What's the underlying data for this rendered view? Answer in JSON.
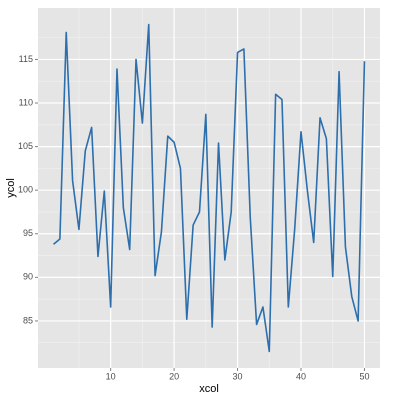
{
  "chart_data": {
    "type": "line",
    "x_label": "xcol",
    "y_label": "ycol",
    "x": [
      1,
      2,
      3,
      4,
      5,
      6,
      7,
      8,
      9,
      10,
      11,
      12,
      13,
      14,
      15,
      16,
      17,
      18,
      19,
      20,
      21,
      22,
      23,
      24,
      25,
      26,
      27,
      28,
      29,
      30,
      31,
      32,
      33,
      34,
      35,
      36,
      37,
      38,
      39,
      40,
      41,
      42,
      43,
      44,
      45,
      46,
      47,
      48,
      49,
      50
    ],
    "series": [
      {
        "name": "ycol",
        "color": "#2c6fac",
        "values": [
          93.8,
          94.4,
          118.1,
          101.1,
          95.5,
          104.5,
          107.2,
          92.4,
          99.9,
          86.6,
          113.9,
          98.0,
          93.2,
          115.0,
          107.7,
          119.0,
          90.2,
          95.2,
          106.2,
          105.5,
          102.5,
          85.2,
          96.0,
          97.5,
          108.7,
          84.3,
          105.4,
          92.0,
          97.5,
          115.8,
          116.2,
          96.9,
          84.6,
          86.6,
          81.5,
          111.0,
          110.4,
          86.6,
          95.5,
          106.7,
          100.0,
          94.0,
          108.3,
          105.9,
          90.1,
          113.6,
          93.5,
          87.8,
          85.0,
          114.8
        ]
      }
    ],
    "xlim": [
      -1.45,
      52.45
    ],
    "ylim": [
      79.6,
      120.9
    ],
    "xticks": [
      10,
      20,
      30,
      40,
      50
    ],
    "yticks": [
      85,
      90,
      95,
      100,
      105,
      110,
      115
    ],
    "x_minor_ticks": [
      5,
      15,
      25,
      35,
      45
    ],
    "y_minor_ticks": [
      82.5,
      87.5,
      92.5,
      97.5,
      102.5,
      107.5,
      112.5,
      117.5
    ],
    "grid": true
  }
}
